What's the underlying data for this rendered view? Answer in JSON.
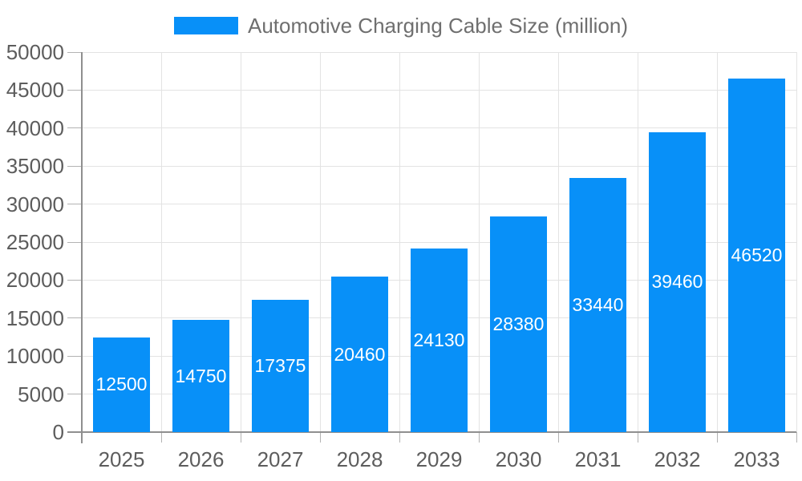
{
  "chart_data": {
    "type": "bar",
    "title": "Automotive Charging Cable Size (million)",
    "categories": [
      "2025",
      "2026",
      "2027",
      "2028",
      "2029",
      "2030",
      "2031",
      "2032",
      "2033"
    ],
    "values": [
      12500,
      14750,
      17375,
      20460,
      24130,
      28380,
      33440,
      39460,
      46520
    ],
    "xlabel": "",
    "ylabel": "",
    "ylim": [
      0,
      50000
    ],
    "y_ticks": [
      0,
      5000,
      10000,
      15000,
      20000,
      25000,
      30000,
      35000,
      40000,
      45000,
      50000
    ],
    "grid": true,
    "legend_position": "top-center",
    "data_labels_position": "inside-center"
  },
  "legend": {
    "label": "Automotive Charging Cable Size (million)"
  },
  "colors": {
    "bar": "#0890f8",
    "data_label": "#ffffff",
    "grid_line": "#e3e3e3",
    "axis_line": "#8f8f8f",
    "tick": "#b3b3b3",
    "axis_label": "#5d5d5d",
    "legend_label": "#6f6f6f",
    "background": "#ffffff"
  }
}
